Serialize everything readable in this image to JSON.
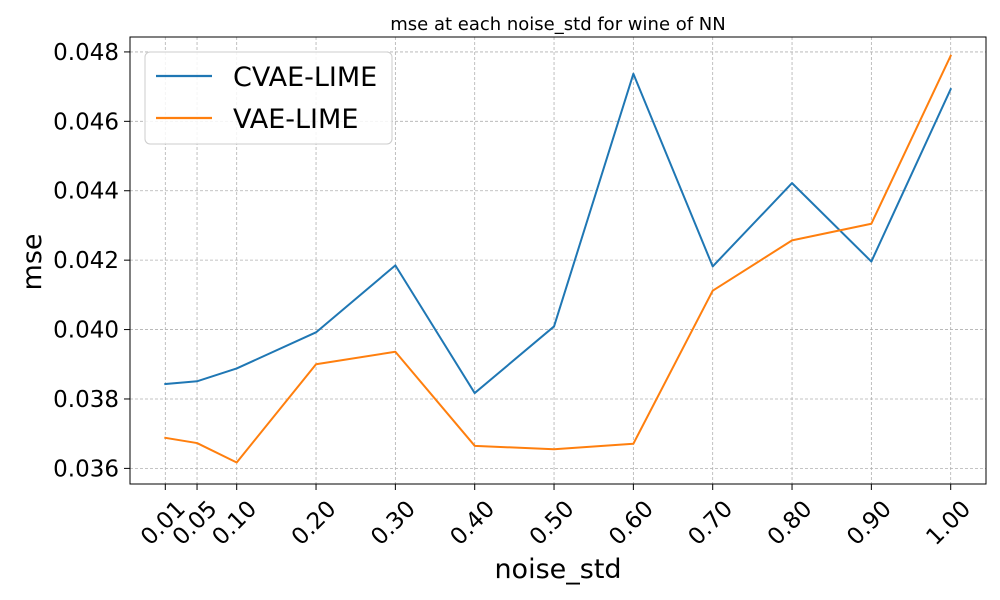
{
  "chart_data": {
    "type": "line",
    "title": "mse at each noise_std for wine of NN",
    "xlabel": "noise_std",
    "ylabel": "mse",
    "x": [
      0.01,
      0.05,
      0.1,
      0.2,
      0.3,
      0.4,
      0.5,
      0.6,
      0.7,
      0.8,
      0.9,
      1.0
    ],
    "x_tick_labels": [
      "0.01",
      "0.05",
      "0.10",
      "0.20",
      "0.30",
      "0.40",
      "0.50",
      "0.60",
      "0.70",
      "0.80",
      "0.90",
      "1.00"
    ],
    "y_ticks": [
      0.036,
      0.038,
      0.04,
      0.042,
      0.044,
      0.046,
      0.048
    ],
    "y_tick_labels": [
      "0.036",
      "0.038",
      "0.040",
      "0.042",
      "0.044",
      "0.046",
      "0.048"
    ],
    "xlim": [
      -0.0345,
      1.0445
    ],
    "ylim": [
      0.03555,
      0.04843
    ],
    "grid": true,
    "legend_position": "top-left",
    "series": [
      {
        "name": "CVAE-LIME",
        "color": "#1f77b4",
        "values": [
          0.03843,
          0.03851,
          0.03888,
          0.03992,
          0.04185,
          0.03817,
          0.04009,
          0.04737,
          0.04182,
          0.04422,
          0.04196,
          0.04693
        ]
      },
      {
        "name": "VAE-LIME",
        "color": "#ff7f0e",
        "values": [
          0.03688,
          0.03673,
          0.03617,
          0.039,
          0.03936,
          0.03665,
          0.03655,
          0.03671,
          0.04112,
          0.04257,
          0.04305,
          0.04789
        ]
      }
    ]
  }
}
